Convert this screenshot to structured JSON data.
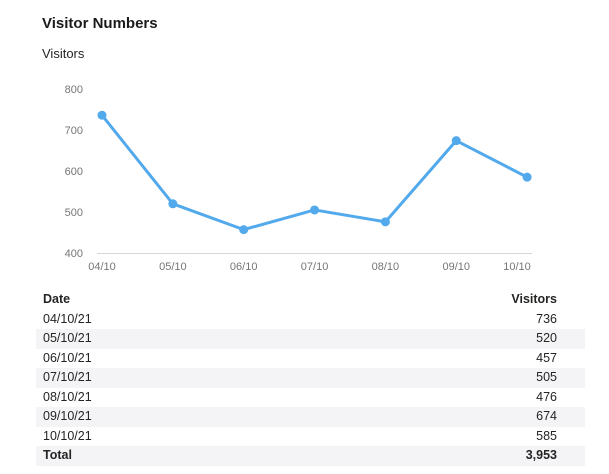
{
  "page": {
    "title": "Visitor Numbers",
    "subtitle": "Visitors"
  },
  "colors": {
    "line": "#52A9EC",
    "axis_text": "#767676",
    "axis_line": "#D6D6D6",
    "text": "#252423",
    "band": "#F4F4F6"
  },
  "chart_data": {
    "type": "line",
    "title": "Visitor Numbers",
    "ylabel": "Visitors",
    "categories": [
      "04/10",
      "05/10",
      "06/10",
      "07/10",
      "08/10",
      "09/10",
      "10/10"
    ],
    "series": [
      {
        "name": "Visitors",
        "values": [
          736,
          520,
          457,
          505,
          476,
          674,
          585
        ]
      }
    ],
    "ylim": [
      400,
      800
    ],
    "yticks": [
      400,
      500,
      600,
      700,
      800
    ],
    "grid": false,
    "legend": false,
    "marker": "circle"
  },
  "table": {
    "columns": [
      "Date",
      "Visitors"
    ],
    "rows": [
      [
        "04/10/21",
        "736"
      ],
      [
        "05/10/21",
        "520"
      ],
      [
        "06/10/21",
        "457"
      ],
      [
        "07/10/21",
        "505"
      ],
      [
        "08/10/21",
        "476"
      ],
      [
        "09/10/21",
        "674"
      ],
      [
        "10/10/21",
        "585"
      ]
    ],
    "total": {
      "label": "Total",
      "value": "3,953"
    }
  }
}
